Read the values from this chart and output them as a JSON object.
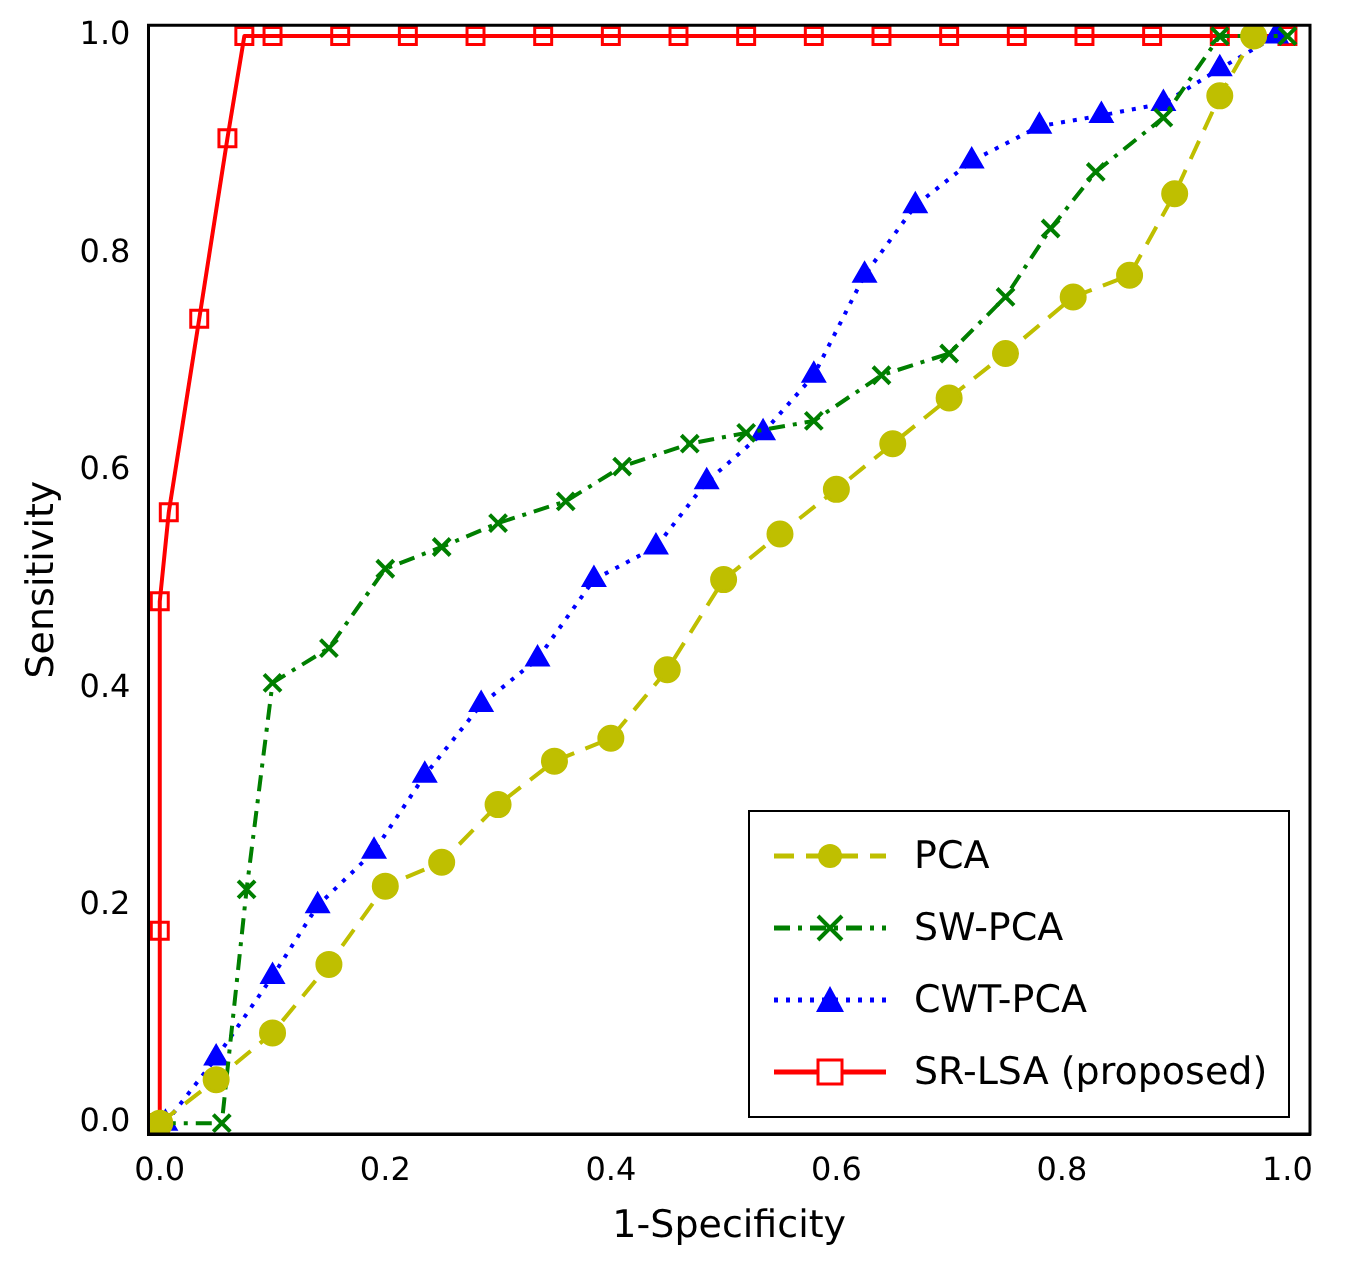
{
  "chart_data": {
    "type": "line",
    "xlabel": "1-Specificity",
    "ylabel": "Sensitivity",
    "xlim": [
      -0.01,
      1.02
    ],
    "ylim": [
      -0.01,
      1.01
    ],
    "xticks": [
      {
        "value": 0,
        "label": "0.0"
      },
      0.2,
      0.4,
      0.6,
      0.8,
      {
        "value": 1,
        "label": "1.0"
      }
    ],
    "yticks": [
      {
        "value": 0,
        "label": "0.0"
      },
      0.2,
      0.4,
      0.6,
      0.8,
      {
        "value": 1,
        "label": "1.0"
      }
    ],
    "grid": false,
    "legend": "bottom right",
    "series": [
      {
        "name": "PCA",
        "color": "#bfbf00",
        "marker": "circle",
        "line_style": "dashed",
        "x": [
          0,
          0.05,
          0.1,
          0.15,
          0.2,
          0.25,
          0.3,
          0.35,
          0.4,
          0.45,
          0.5,
          0.55,
          0.6,
          0.65,
          0.7,
          0.75,
          0.81,
          0.86,
          0.9,
          0.94,
          0.97
        ],
        "values": [
          0,
          0.04,
          0.083,
          0.146,
          0.218,
          0.24,
          0.293,
          0.333,
          0.354,
          0.417,
          0.5,
          0.542,
          0.583,
          0.625,
          0.667,
          0.708,
          0.76,
          0.78,
          0.855,
          0.945,
          1.0
        ]
      },
      {
        "name": "SW-PCA",
        "color": "#007f00",
        "marker": "cross",
        "line_style": "dashdot",
        "x": [
          0,
          0.055,
          0.077,
          0.1,
          0.15,
          0.2,
          0.25,
          0.3,
          0.36,
          0.41,
          0.47,
          0.52,
          0.58,
          0.64,
          0.7,
          0.75,
          0.79,
          0.83,
          0.89,
          0.94,
          1.0
        ],
        "values": [
          0,
          0,
          0.215,
          0.405,
          0.437,
          0.51,
          0.53,
          0.552,
          0.572,
          0.604,
          0.625,
          0.635,
          0.646,
          0.688,
          0.708,
          0.76,
          0.823,
          0.875,
          0.925,
          1.0,
          1.0
        ]
      },
      {
        "name": "CWT-PCA",
        "color": "#0000ff",
        "marker": "triangle",
        "line_style": "dotted",
        "x": [
          0.005,
          0.05,
          0.1,
          0.14,
          0.19,
          0.235,
          0.285,
          0.335,
          0.385,
          0.44,
          0.485,
          0.535,
          0.58,
          0.625,
          0.67,
          0.72,
          0.78,
          0.835,
          0.89,
          0.94,
          0.99
        ],
        "values": [
          0,
          0.06,
          0.135,
          0.2,
          0.25,
          0.32,
          0.385,
          0.427,
          0.5,
          0.53,
          0.59,
          0.635,
          0.688,
          0.78,
          0.844,
          0.885,
          0.917,
          0.927,
          0.938,
          0.97,
          1.0
        ]
      },
      {
        "name": "SR-LSA (proposed)",
        "color": "#ff0000",
        "marker": "square",
        "line_style": "solid",
        "x": [
          0,
          0,
          0,
          0.008,
          0.035,
          0.06,
          0.075,
          0.1,
          0.16,
          0.22,
          0.28,
          0.34,
          0.4,
          0.46,
          0.52,
          0.58,
          0.64,
          0.7,
          0.76,
          0.82,
          0.88,
          0.94,
          1.0
        ],
        "values": [
          0,
          0.177,
          0.48,
          0.562,
          0.74,
          0.906,
          1.0,
          1.0,
          1.0,
          1.0,
          1.0,
          1.0,
          1.0,
          1.0,
          1.0,
          1.0,
          1.0,
          1.0,
          1.0,
          1.0,
          1.0,
          1.0,
          1.0
        ]
      }
    ]
  }
}
